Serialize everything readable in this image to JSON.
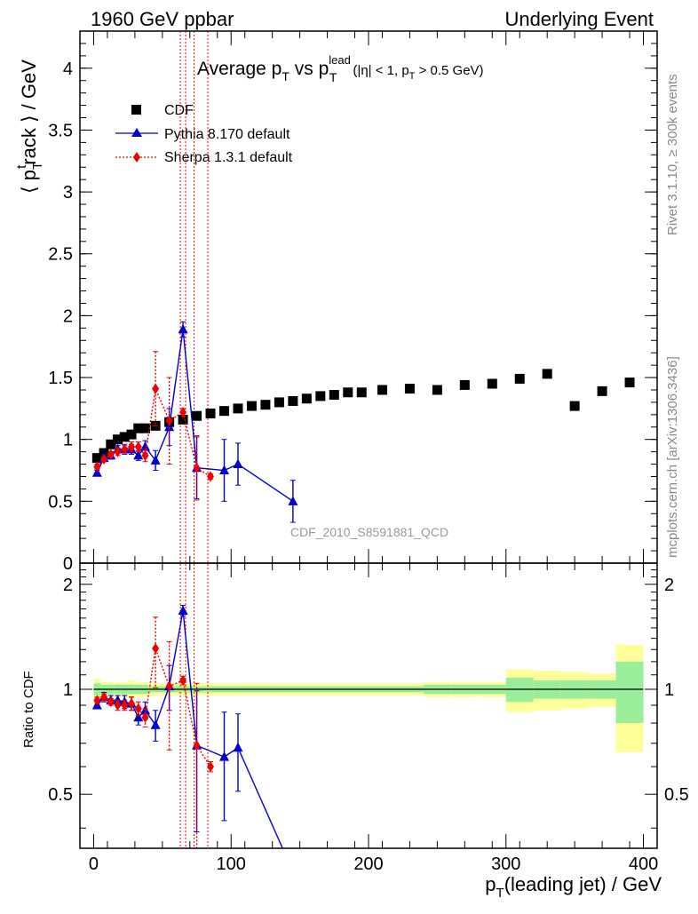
{
  "header": {
    "left": "1960 GeV ppbar",
    "right": "Underlying Event"
  },
  "side_labels": {
    "rivet": "Rivet 3.1.10, ≥ 300k events",
    "mcplots": "mcplots.cern.ch [arXiv:1306.3436]"
  },
  "watermark": "CDF_2010_S8591881_QCD",
  "main_title": {
    "prefix": "Average p",
    "sub_t": "T",
    "vs": " vs p",
    "sup_lead": "lead",
    "sub_t2": "T",
    "cond1": "(|η| < 1, p",
    "cond_sub": "T",
    "cond2": " > 0.5 GeV)"
  },
  "ylabel_main": {
    "a": "⟨ p",
    "sub": "T",
    "sup": "t",
    "b": "rack ⟩ / GeV"
  },
  "ylabel_ratio": "Ratio to CDF",
  "xlabel": {
    "a": "p",
    "sub": "T",
    "b": "(leading jet) / GeV"
  },
  "colors": {
    "data": "#000000",
    "pythia": "#0000cc",
    "sherpa": "#ee0000",
    "band_inner": "#99ee99",
    "band_outer": "#ffff99"
  },
  "chart_data": {
    "type": "scatter",
    "xlim": [
      -10,
      410
    ],
    "ylim_main": [
      0,
      4.3
    ],
    "ylim_ratio": [
      0.35,
      2.3
    ],
    "main_yticks": [
      {
        "v": 0,
        "label": "0"
      },
      {
        "v": 0.5,
        "label": "0.5"
      },
      {
        "v": 1,
        "label": "1"
      },
      {
        "v": 1.5,
        "label": "1.5"
      },
      {
        "v": 2,
        "label": "2"
      },
      {
        "v": 2.5,
        "label": "2.5"
      },
      {
        "v": 3,
        "label": "3"
      },
      {
        "v": 3.5,
        "label": "3.5"
      },
      {
        "v": 4,
        "label": "4"
      }
    ],
    "ratio_yticks": [
      {
        "v": 0.5,
        "label": "0.5"
      },
      {
        "v": 1,
        "label": "1"
      },
      {
        "v": 2,
        "label": "2"
      }
    ],
    "xticks": [
      {
        "v": 0,
        "label": "0"
      },
      {
        "v": 100,
        "label": "100"
      },
      {
        "v": 200,
        "label": "200"
      },
      {
        "v": 300,
        "label": "300"
      },
      {
        "v": 400,
        "label": "400"
      }
    ],
    "legend": [
      "CDF",
      "Pythia 8.170 default",
      "Sherpa 1.3.1 default"
    ],
    "data": {
      "name": "CDF",
      "x": [
        2.5,
        7.5,
        12.5,
        17.5,
        22.5,
        27.5,
        32.5,
        37.5,
        45,
        55,
        65,
        75,
        85,
        95,
        105,
        115,
        125,
        135,
        145,
        155,
        165,
        175,
        185,
        195,
        210,
        230,
        250,
        270,
        290,
        310,
        330,
        350,
        370,
        390
      ],
      "y": [
        0.85,
        0.89,
        0.96,
        1.0,
        1.02,
        1.04,
        1.09,
        1.09,
        1.11,
        1.14,
        1.16,
        1.19,
        1.21,
        1.23,
        1.25,
        1.27,
        1.28,
        1.3,
        1.31,
        1.33,
        1.35,
        1.36,
        1.38,
        1.38,
        1.4,
        1.41,
        1.4,
        1.44,
        1.45,
        1.49,
        1.53,
        1.27,
        1.39,
        1.46
      ],
      "bins": [
        [
          0,
          5
        ],
        [
          5,
          10
        ],
        [
          10,
          15
        ],
        [
          15,
          20
        ],
        [
          20,
          25
        ],
        [
          25,
          30
        ],
        [
          30,
          35
        ],
        [
          35,
          40
        ],
        [
          40,
          50
        ],
        [
          50,
          60
        ],
        [
          60,
          70
        ],
        [
          70,
          80
        ],
        [
          80,
          90
        ],
        [
          90,
          100
        ],
        [
          100,
          110
        ],
        [
          110,
          120
        ],
        [
          120,
          130
        ],
        [
          130,
          140
        ],
        [
          140,
          150
        ],
        [
          150,
          160
        ],
        [
          160,
          170
        ],
        [
          170,
          180
        ],
        [
          180,
          190
        ],
        [
          190,
          200
        ],
        [
          200,
          220
        ],
        [
          220,
          240
        ],
        [
          240,
          260
        ],
        [
          260,
          280
        ],
        [
          280,
          300
        ],
        [
          300,
          320
        ],
        [
          320,
          340
        ],
        [
          340,
          360
        ],
        [
          360,
          380
        ],
        [
          380,
          400
        ]
      ],
      "band_inner": [
        0.04,
        0.03,
        0.03,
        0.03,
        0.03,
        0.03,
        0.03,
        0.03,
        0.02,
        0.02,
        0.02,
        0.02,
        0.02,
        0.02,
        0.02,
        0.02,
        0.02,
        0.02,
        0.02,
        0.02,
        0.02,
        0.02,
        0.02,
        0.02,
        0.02,
        0.02,
        0.03,
        0.03,
        0.03,
        0.08,
        0.06,
        0.06,
        0.06,
        0.2
      ],
      "band_outer": [
        0.07,
        0.05,
        0.05,
        0.05,
        0.05,
        0.06,
        0.05,
        0.05,
        0.04,
        0.04,
        0.04,
        0.04,
        0.04,
        0.04,
        0.04,
        0.04,
        0.04,
        0.04,
        0.04,
        0.04,
        0.04,
        0.04,
        0.04,
        0.04,
        0.04,
        0.04,
        0.05,
        0.05,
        0.05,
        0.14,
        0.13,
        0.12,
        0.11,
        0.34
      ]
    },
    "series": [
      {
        "name": "Pythia 8.170 default",
        "x": [
          2.5,
          7.5,
          12.5,
          17.5,
          22.5,
          27.5,
          32.5,
          37.5,
          45,
          55,
          65,
          75,
          95,
          105,
          145
        ],
        "y": [
          0.73,
          0.85,
          0.87,
          0.92,
          0.92,
          0.92,
          0.87,
          0.94,
          0.83,
          1.1,
          1.89,
          0.77,
          0.75,
          0.8,
          0.5
        ],
        "err": [
          0.02,
          0.03,
          0.03,
          0.03,
          0.04,
          0.04,
          0.04,
          0.05,
          0.08,
          0.15,
          0.06,
          0.25,
          0.25,
          0.17,
          0.17
        ],
        "ratio_y": [
          0.9,
          0.95,
          0.93,
          0.93,
          0.92,
          0.91,
          0.83,
          0.87,
          0.79,
          1.02,
          1.68,
          0.69,
          0.64,
          0.68,
          0.3
        ],
        "ratio_err": [
          0.02,
          0.03,
          0.03,
          0.03,
          0.04,
          0.04,
          0.04,
          0.05,
          0.08,
          0.15,
          0.06,
          0.3,
          0.22,
          0.17,
          0.0
        ]
      },
      {
        "name": "Sherpa 1.3.1 default",
        "x": [
          2.5,
          7.5,
          12.5,
          17.5,
          22.5,
          27.5,
          32.5,
          37.5,
          45,
          55,
          65,
          75,
          85
        ],
        "y": [
          0.78,
          0.84,
          0.88,
          0.9,
          0.92,
          0.94,
          0.94,
          0.87,
          1.41,
          1.15,
          1.22,
          0.77,
          0.7
        ],
        "err": [
          0.02,
          0.02,
          0.02,
          0.03,
          0.03,
          0.04,
          0.04,
          0.05,
          0.3,
          0.35,
          0.03,
          0.26,
          0.02
        ],
        "ratio_y": [
          0.93,
          0.95,
          0.92,
          0.9,
          0.9,
          0.91,
          0.88,
          0.83,
          1.31,
          1.02,
          1.06,
          0.69,
          0.6
        ],
        "ratio_err": [
          0.02,
          0.02,
          0.02,
          0.03,
          0.03,
          0.04,
          0.04,
          0.05,
          0.3,
          0.35,
          0.03,
          0.35,
          0.02
        ]
      }
    ]
  }
}
